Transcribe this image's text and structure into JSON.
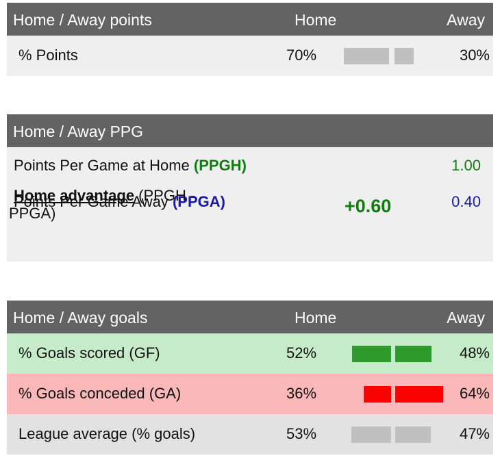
{
  "points_panel": {
    "header": {
      "title": "Home / Away points",
      "home": "Home",
      "away": "Away"
    },
    "row": {
      "label": "% Points",
      "home_value": "70%",
      "away_value": "30%",
      "home_share": 0.7,
      "away_share": 0.3,
      "bar_color": "#c0c0c0"
    }
  },
  "ppg_panel": {
    "header": {
      "title": "Home / Away PPG"
    },
    "home_row": {
      "label": "Points Per Game at Home ",
      "code": "(PPGH)",
      "value": "1.00",
      "color": "#127c12"
    },
    "away_row": {
      "label": "Points Per Game Away ",
      "code": "(PPGA)",
      "value": "0.40",
      "color": "#1a1aaa"
    },
    "advantage": {
      "label": "Home advantage",
      "formula_1": " (PPGH -",
      "formula_2": "PPGA)",
      "value": "+0.60"
    }
  },
  "goals_panel": {
    "header": {
      "title": "Home / Away goals",
      "home": "Home",
      "away": "Away"
    },
    "rows": [
      {
        "label": "% Goals scored (GF)",
        "home_value": "52%",
        "away_value": "48%",
        "home_share": 0.52,
        "away_share": 0.48,
        "bar_color": "#2e9a2e",
        "bg": "#c6ebc9"
      },
      {
        "label": "% Goals conceded (GA)",
        "home_value": "36%",
        "away_value": "64%",
        "home_share": 0.36,
        "away_share": 0.64,
        "bar_color": "#ff0000",
        "bg": "#fbb8b8"
      },
      {
        "label": "League average (% goals)",
        "home_value": "53%",
        "away_value": "47%",
        "home_share": 0.53,
        "away_share": 0.47,
        "bar_color": "#c0c0c0",
        "bg": "#e2e2e2"
      }
    ]
  }
}
